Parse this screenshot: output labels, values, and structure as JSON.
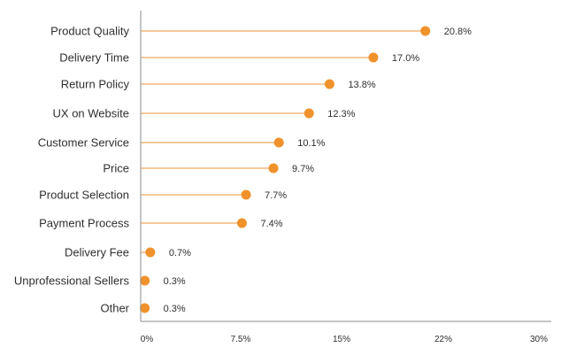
{
  "chart_data": {
    "type": "lollipop",
    "categories": [
      "Product Quality",
      "Delivery Time",
      "Return Policy",
      "UX on Website",
      "Customer Service",
      "Price",
      "Product Selection",
      "Payment Process",
      "Delivery Fee",
      "Unprofessional Sellers",
      "Other"
    ],
    "values": [
      20.8,
      17.0,
      13.8,
      12.3,
      10.1,
      9.7,
      7.7,
      7.4,
      0.7,
      0.3,
      0.3
    ],
    "value_labels": [
      "20.8%",
      "17.0%",
      "13.8%",
      "12.3%",
      "10.1%",
      "9.7%",
      "7.7%",
      "7.4%",
      "0.7%",
      "0.3%",
      "0.3%"
    ],
    "x_ticks": [
      0,
      7.5,
      15,
      22,
      30
    ],
    "x_tick_labels": [
      "0%",
      "7.5%",
      "15%",
      "22%",
      "30%"
    ],
    "xlim": [
      0,
      30
    ],
    "orientation": "horizontal",
    "grid": false,
    "legend": "none",
    "title": "",
    "xlabel": "",
    "ylabel": "",
    "colors": {
      "marker": "#f0922b",
      "stem": "#f0a861",
      "axis": "#8c8c8c",
      "text": "#2f2f2f"
    }
  }
}
